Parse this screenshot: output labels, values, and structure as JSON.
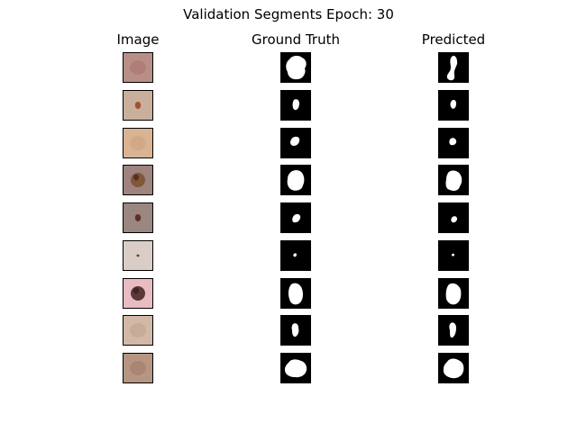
{
  "figure": {
    "title": "Validation Segments Epoch: 30"
  },
  "columns": [
    {
      "key": "image",
      "title": "Image"
    },
    {
      "key": "ground_truth",
      "title": "Ground Truth"
    },
    {
      "key": "predicted",
      "title": "Predicted"
    }
  ],
  "palette": {
    "mask_background": "#000000",
    "mask_foreground": "#ffffff",
    "border": "#000000"
  },
  "rows": [
    {
      "skin": "#b48880",
      "lesion": "#a45f5a",
      "lesion_visible": "faint"
    },
    {
      "skin": "#c6aa96",
      "lesion": "#9a4a26",
      "lesion_visible": "small"
    },
    {
      "skin": "#d7b08c",
      "lesion": "#c39572",
      "lesion_visible": "faint"
    },
    {
      "skin": "#9a7c78",
      "lesion": "#7d5232",
      "lesion_visible": "large"
    },
    {
      "skin": "#94807a",
      "lesion": "#5a2618",
      "lesion_visible": "small"
    },
    {
      "skin": "#d8cac5",
      "lesion": "#6b2d20",
      "lesion_visible": "tiny"
    },
    {
      "skin": "#e8b8c0",
      "lesion": "#4a2a28",
      "lesion_visible": "large"
    },
    {
      "skin": "#d0b4a2",
      "lesion": "#b89278",
      "lesion_visible": "faint"
    },
    {
      "skin": "#b2907c",
      "lesion": "#9a6452",
      "lesion_visible": "faint"
    }
  ]
}
